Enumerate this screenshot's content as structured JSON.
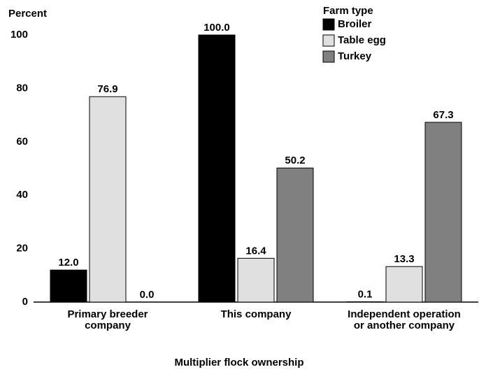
{
  "chart_data": {
    "type": "bar",
    "y_label": "Percent",
    "x_label": "Multiplier flock ownership",
    "legend_title": "Farm type",
    "categories": [
      "Primary breeder company",
      "This company",
      "Independent operation or another company"
    ],
    "series": [
      {
        "name": "Broiler",
        "color": "#000000",
        "values": [
          12.0,
          100.0,
          0.1
        ],
        "value_labels": [
          "12.0",
          "100.0",
          "0.1"
        ]
      },
      {
        "name": "Table egg",
        "color": "#e0e0e0",
        "values": [
          76.9,
          16.4,
          13.3
        ],
        "value_labels": [
          "76.9",
          "16.4",
          "13.3"
        ]
      },
      {
        "name": "Turkey",
        "color": "#808080",
        "values": [
          0.0,
          50.2,
          67.3
        ],
        "value_labels": [
          "0.0",
          "50.2",
          "67.3"
        ]
      }
    ],
    "ylim": [
      0,
      100
    ],
    "yticks": [
      0,
      20,
      40,
      60,
      80,
      100
    ],
    "grid": false,
    "legend": "top-right"
  }
}
